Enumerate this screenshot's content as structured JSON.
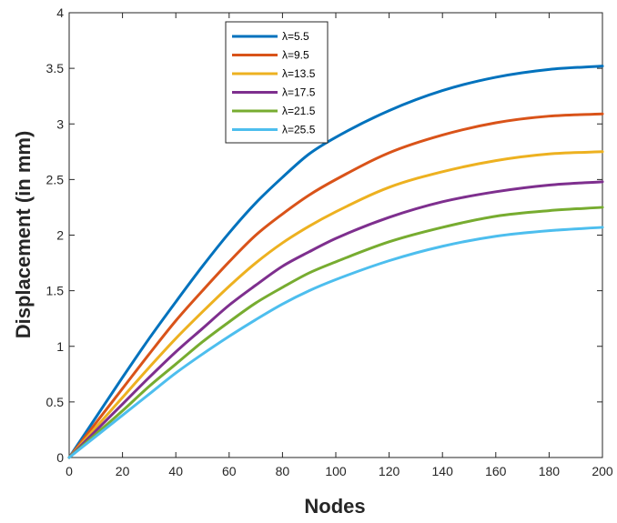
{
  "chart_data": {
    "type": "line",
    "title": "",
    "xlabel": "Nodes",
    "ylabel": "Displacement (in mm)",
    "xlim": [
      0,
      200
    ],
    "ylim": [
      0,
      4
    ],
    "xticks": [
      0,
      20,
      40,
      60,
      80,
      100,
      120,
      140,
      160,
      180,
      200
    ],
    "yticks": [
      0,
      0.5,
      1,
      1.5,
      2,
      2.5,
      3,
      3.5,
      4
    ],
    "grid": false,
    "legend_position": "top-center",
    "x": [
      0,
      10,
      20,
      30,
      40,
      50,
      60,
      70,
      80,
      90,
      100,
      120,
      140,
      160,
      180,
      200
    ],
    "series": [
      {
        "name": "λ=5.5",
        "color": "#0072BD",
        "values": [
          0,
          0.36,
          0.72,
          1.07,
          1.4,
          1.72,
          2.02,
          2.29,
          2.52,
          2.73,
          2.88,
          3.12,
          3.3,
          3.42,
          3.49,
          3.52
        ]
      },
      {
        "name": "λ=9.5",
        "color": "#D95319",
        "values": [
          0,
          0.31,
          0.62,
          0.93,
          1.23,
          1.5,
          1.76,
          2.0,
          2.19,
          2.36,
          2.5,
          2.74,
          2.9,
          3.01,
          3.07,
          3.09
        ]
      },
      {
        "name": "λ=13.5",
        "color": "#EDB120",
        "values": [
          0,
          0.27,
          0.54,
          0.81,
          1.07,
          1.31,
          1.54,
          1.75,
          1.93,
          2.08,
          2.21,
          2.43,
          2.57,
          2.67,
          2.73,
          2.75
        ]
      },
      {
        "name": "λ=17.5",
        "color": "#7E2F8E",
        "values": [
          0,
          0.24,
          0.48,
          0.72,
          0.95,
          1.16,
          1.37,
          1.55,
          1.72,
          1.85,
          1.97,
          2.16,
          2.3,
          2.39,
          2.45,
          2.48
        ]
      },
      {
        "name": "λ=21.5",
        "color": "#77AC30",
        "values": [
          0,
          0.21,
          0.42,
          0.64,
          0.84,
          1.04,
          1.22,
          1.39,
          1.53,
          1.66,
          1.76,
          1.94,
          2.07,
          2.17,
          2.22,
          2.25
        ]
      },
      {
        "name": "λ=25.5",
        "color": "#4DBEEE",
        "values": [
          0,
          0.19,
          0.38,
          0.57,
          0.76,
          0.93,
          1.09,
          1.24,
          1.38,
          1.5,
          1.6,
          1.77,
          1.9,
          1.99,
          2.04,
          2.07
        ]
      }
    ]
  }
}
